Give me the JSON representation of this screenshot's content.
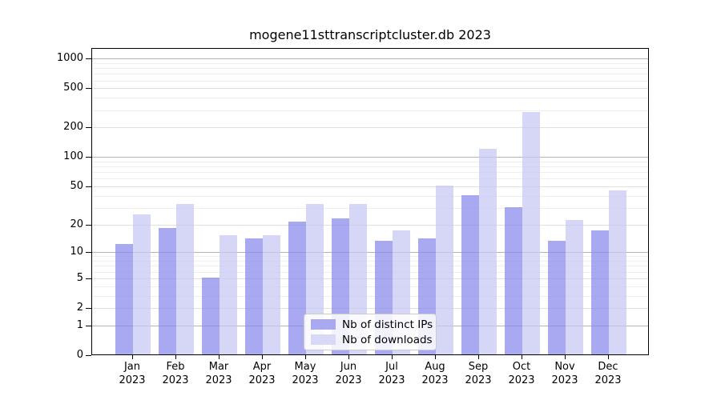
{
  "chart_data": {
    "type": "bar",
    "title": "mogene11sttranscriptcluster.db 2023",
    "categories": [
      "Jan",
      "Feb",
      "Mar",
      "Apr",
      "May",
      "Jun",
      "Jul",
      "Aug",
      "Sep",
      "Oct",
      "Nov",
      "Dec"
    ],
    "x_tick_second_line": "2023",
    "series": [
      {
        "name": "Nb of distinct IPs",
        "color": "#a9a9f1",
        "fill": "rgba(136,136,236,0.72)",
        "values": [
          12,
          18,
          5,
          14,
          21,
          23,
          13,
          14,
          40,
          30,
          13,
          17
        ]
      },
      {
        "name": "Nb of downloads",
        "color": "#d8d8f7",
        "fill": "rgba(198,198,244,0.72)",
        "values": [
          25,
          32,
          15,
          15,
          32,
          32,
          17,
          50,
          120,
          283,
          22,
          45
        ]
      }
    ],
    "y_axis": {
      "scale": "log10(1+x)",
      "ticks": [
        0,
        1,
        2,
        5,
        10,
        20,
        50,
        100,
        200,
        500,
        1000
      ],
      "decade_gridlines": [
        1,
        10,
        100,
        1000
      ],
      "labeled_gridlines": [
        2,
        5,
        20,
        50,
        200,
        500
      ],
      "minor_gridlines": [
        3,
        4,
        6,
        7,
        8,
        9,
        30,
        40,
        60,
        70,
        80,
        90,
        300,
        400,
        600,
        700,
        800,
        900
      ],
      "ylim": [
        0,
        1281
      ]
    },
    "grid": true,
    "legend_position": "inside-bottom-center",
    "gridline_colors": {
      "decade": "#b4b4b4",
      "labeled": "#e0e0e0",
      "minor": "#efefef"
    }
  }
}
